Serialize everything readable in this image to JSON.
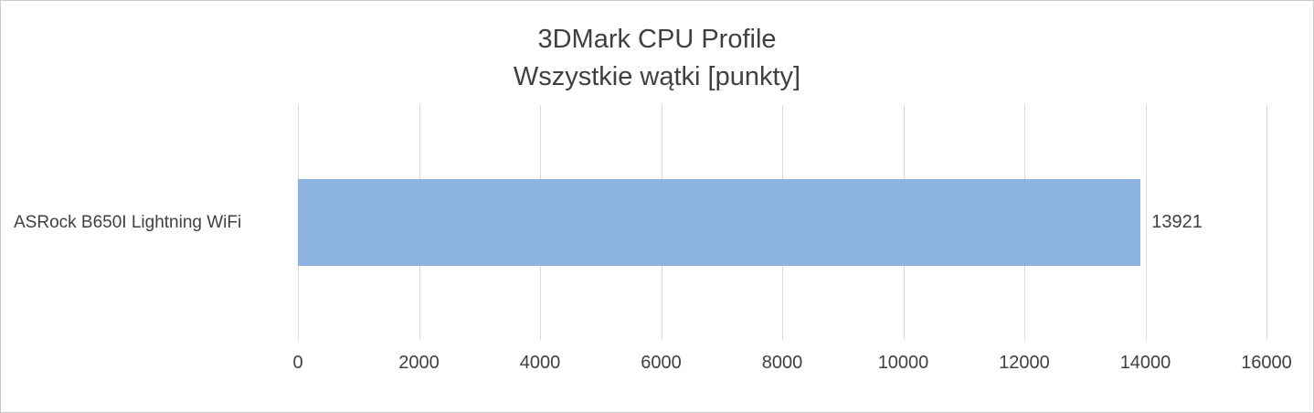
{
  "chart_data": {
    "type": "bar",
    "orientation": "horizontal",
    "title": "3DMark CPU Profile",
    "subtitle": "Wszystkie wątki [punkty]",
    "categories": [
      "ASRock B650I Lightning WiFi"
    ],
    "values": [
      13921
    ],
    "xlim": [
      0,
      16000
    ],
    "xticks": [
      0,
      2000,
      4000,
      6000,
      8000,
      10000,
      12000,
      14000,
      16000
    ],
    "bar_color": "#8eb4e2",
    "gridline_color": "#d9d9d9",
    "text_color": "#404040",
    "grid": true,
    "legend": false,
    "value_labels": true
  }
}
